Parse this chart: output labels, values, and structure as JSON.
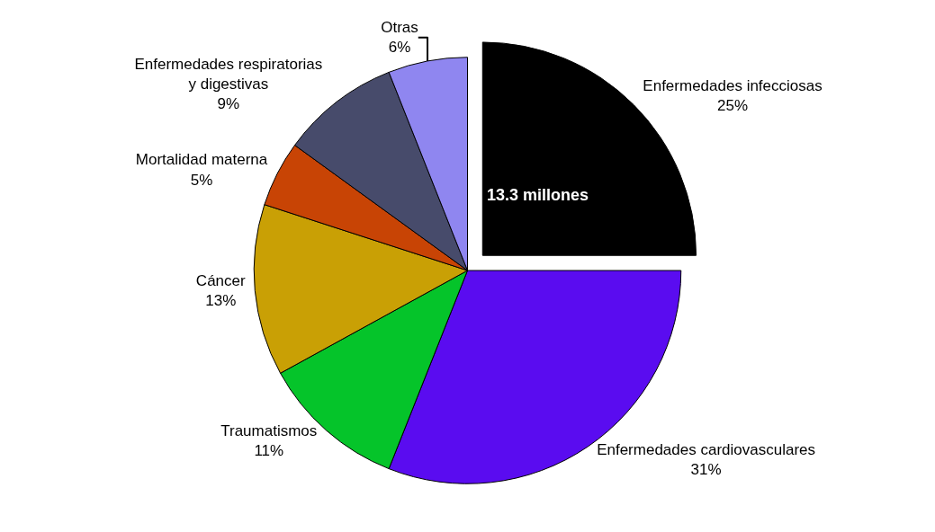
{
  "chart_data": {
    "type": "pie",
    "categories": [
      "Enfermedades infecciosas",
      "Enfermedades cardiovasculares",
      "Traumatismos",
      "Cáncer",
      "Mortalidad materna",
      "Enfermedades respiratorias\ny digestivas",
      "Otras"
    ],
    "values": [
      25,
      31,
      11,
      13,
      5,
      9,
      6
    ],
    "colors": [
      "#000000",
      "#5a0cf0",
      "#05c42a",
      "#c9a005",
      "#c84405",
      "#474b6b",
      "#8f86f0"
    ],
    "value_labels": [
      "25%",
      "31%",
      "11%",
      "13%",
      "5%",
      "9%",
      "6%"
    ],
    "annotations": [
      "13.3 millones"
    ],
    "legend": false
  }
}
